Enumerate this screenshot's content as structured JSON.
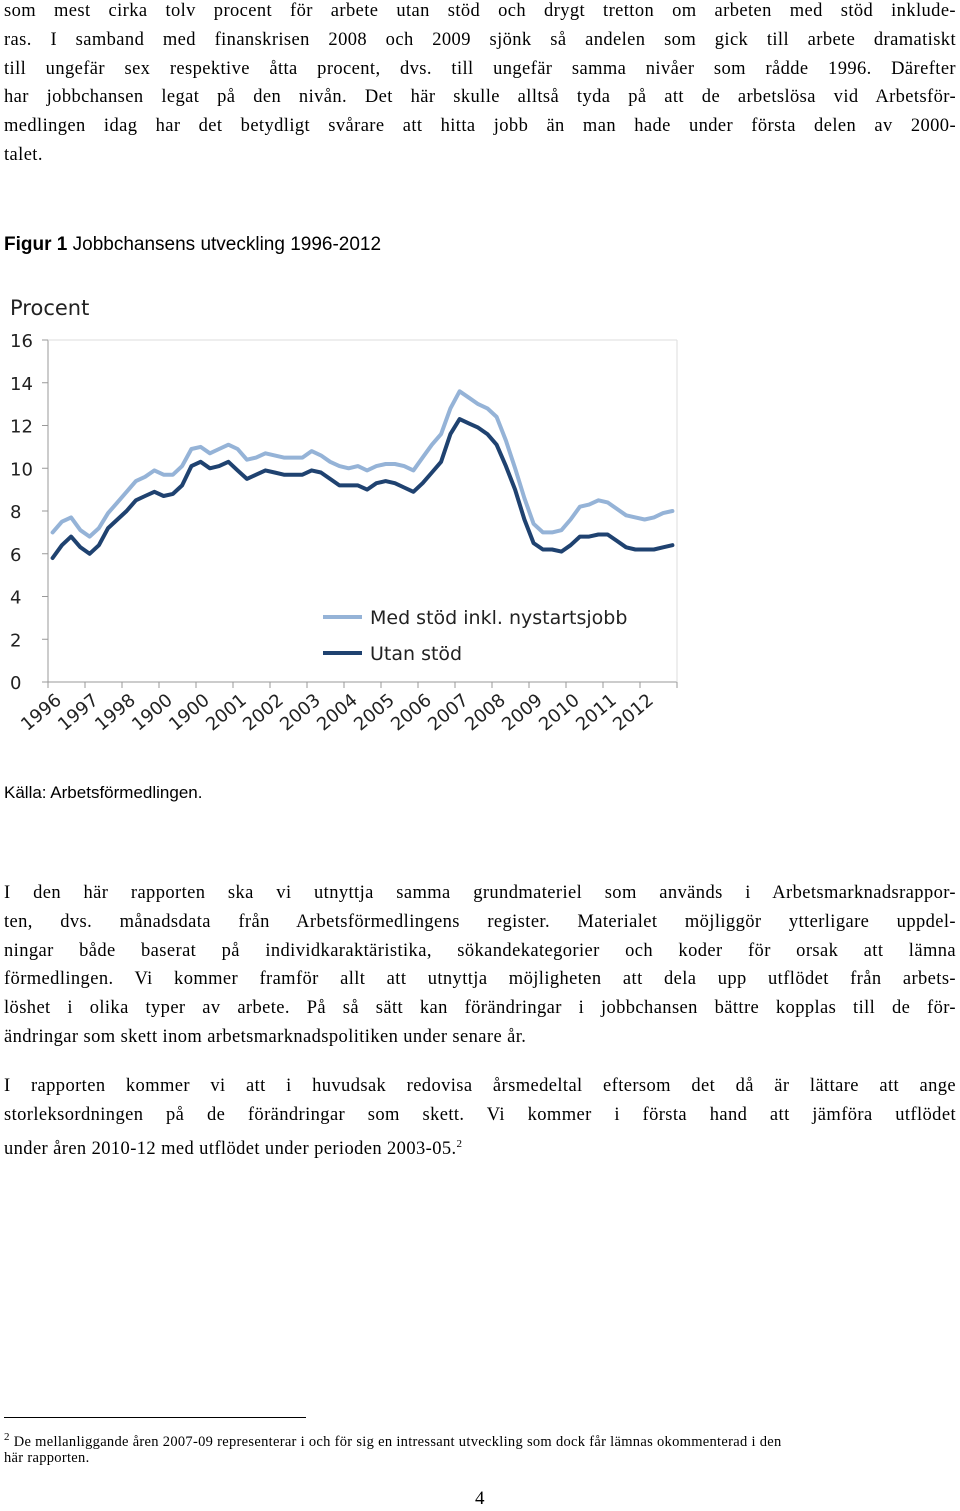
{
  "paragraphs": [
    {
      "lines": [
        "som mest cirka tolv procent för arbete utan stöd och drygt tretton om arbeten med stöd inklude-",
        "ras. I samband med finanskrisen 2008 och 2009 sjönk så andelen som gick till arbete dramatiskt",
        "till ungefär sex respektive åtta procent, dvs. till ungefär samma nivåer som rådde 1996. Därefter",
        "har jobbchansen legat på den nivån. Det här skulle alltså tyda på att de arbetslösa vid Arbetsför-",
        "medlingen idag har det betydligt svårare att hitta jobb än man hade under första delen av 2000-",
        "talet."
      ]
    },
    {
      "lines": [
        "I den här rapporten ska vi utnyttja samma grundmateriel som används i Arbetsmarknadsrappor-",
        "ten, dvs. månadsdata från Arbetsförmedlingens register. Materialet möjliggör ytterligare uppdel-",
        "ningar både baserat på individkaraktäristika, sökandekategorier och koder för orsak att lämna",
        "förmedlingen. Vi kommer framför allt att utnyttja möjligheten att dela upp utflödet från arbets-",
        "löshet i olika typer av arbete. På så sätt kan förändringar i jobbchansen bättre kopplas till de för-",
        "ändringar som skett inom arbetsmarknadspolitiken under senare år."
      ]
    },
    {
      "lines": [
        "I rapporten kommer vi att i huvudsak redovisa årsmedeltal eftersom det då är lättare att ange",
        "storleksordningen på de förändringar som skett. Vi kommer i första hand att jämföra utflödet",
        "under åren 2010-12 med utflödet under perioden 2003-05."
      ],
      "footnote_ref": "2"
    }
  ],
  "figure": {
    "label": "Figur 1",
    "caption": "Jobbchansens utveckling 1996-2012",
    "source": "Källa: Arbetsförmedlingen."
  },
  "chart_data": {
    "type": "line",
    "ylabel": "Procent",
    "ylim": [
      0,
      16
    ],
    "yticks": [
      0,
      2,
      4,
      6,
      8,
      10,
      12,
      14,
      16
    ],
    "categories": [
      "1996",
      null,
      null,
      null,
      "1997",
      null,
      null,
      null,
      "1998",
      null,
      null,
      null,
      "1900",
      null,
      null,
      null,
      "1900",
      null,
      null,
      null,
      "2001",
      null,
      null,
      null,
      "2002",
      null,
      null,
      null,
      "2003",
      null,
      null,
      null,
      "2004",
      null,
      null,
      null,
      "2005",
      null,
      null,
      null,
      "2006",
      null,
      null,
      null,
      "2007",
      null,
      null,
      null,
      "2008",
      null,
      null,
      null,
      "2009",
      null,
      null,
      null,
      "2010",
      null,
      null,
      null,
      "2011",
      null,
      null,
      null,
      "2012",
      null,
      null,
      null
    ],
    "series": [
      {
        "name": "Med stöd inkl. nystartsjobb",
        "color": "#95b3d7",
        "values": [
          7.0,
          7.5,
          7.7,
          7.1,
          6.8,
          7.2,
          7.9,
          8.4,
          8.9,
          9.4,
          9.6,
          9.9,
          9.7,
          9.7,
          10.1,
          10.9,
          11.0,
          10.7,
          10.9,
          11.1,
          10.9,
          10.4,
          10.5,
          10.7,
          10.6,
          10.5,
          10.5,
          10.5,
          10.8,
          10.6,
          10.3,
          10.1,
          10.0,
          10.1,
          9.9,
          10.1,
          10.2,
          10.2,
          10.1,
          9.9,
          10.5,
          11.1,
          11.6,
          12.8,
          13.6,
          13.3,
          13.0,
          12.8,
          12.4,
          11.3,
          10.0,
          8.6,
          7.4,
          7.0,
          7.0,
          7.1,
          7.6,
          8.2,
          8.3,
          8.5,
          8.4,
          8.1,
          7.8,
          7.7,
          7.6,
          7.7,
          7.9,
          8.0
        ]
      },
      {
        "name": "Utan stöd",
        "color": "#1f4270",
        "values": [
          5.8,
          6.4,
          6.8,
          6.3,
          6.0,
          6.4,
          7.2,
          7.6,
          8.0,
          8.5,
          8.7,
          8.9,
          8.7,
          8.8,
          9.2,
          10.1,
          10.3,
          10.0,
          10.1,
          10.3,
          9.9,
          9.5,
          9.7,
          9.9,
          9.8,
          9.7,
          9.7,
          9.7,
          9.9,
          9.8,
          9.5,
          9.2,
          9.2,
          9.2,
          9.0,
          9.3,
          9.4,
          9.3,
          9.1,
          8.9,
          9.3,
          9.8,
          10.3,
          11.6,
          12.3,
          12.1,
          11.9,
          11.6,
          11.1,
          10.1,
          9.0,
          7.6,
          6.5,
          6.2,
          6.2,
          6.1,
          6.4,
          6.8,
          6.8,
          6.9,
          6.9,
          6.6,
          6.3,
          6.2,
          6.2,
          6.2,
          6.3,
          6.4
        ]
      }
    ]
  },
  "footnote": {
    "marker": "2",
    "lines": [
      "De mellanliggande åren 2007-09 representerar i och för sig en intressant utveckling som dock får lämnas okommenterad i den",
      "här rapporten."
    ]
  },
  "page_number": "4"
}
